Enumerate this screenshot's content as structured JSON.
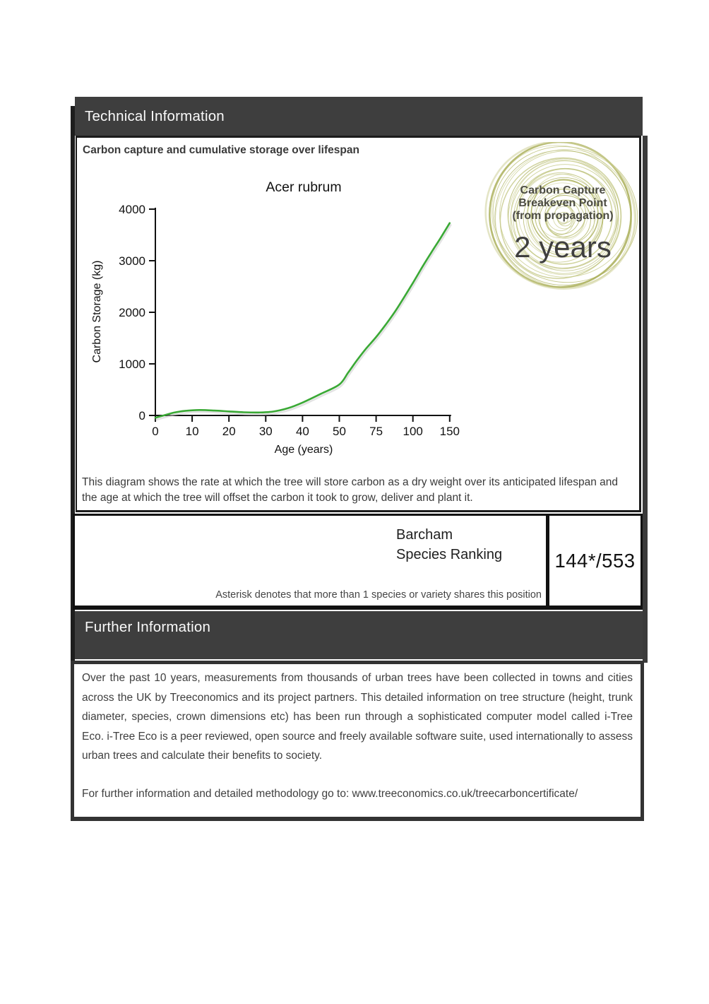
{
  "sections": {
    "technical_title": "Technical Information",
    "further_title": "Further Information"
  },
  "chart_panel": {
    "title": "Carbon capture and cumulative storage over lifespan",
    "caption": "This diagram shows the rate at which the tree will store carbon as a dry weight over its anticipated lifespan and the age at which the tree will offset the carbon it took to grow, deliver and plant it."
  },
  "chart_data": {
    "type": "line",
    "title": "Acer rubrum",
    "xlabel": "Age (years)",
    "ylabel": "Carbon Storage (kg)",
    "x_ticks": [
      0,
      10,
      20,
      30,
      40,
      50,
      75,
      100,
      150
    ],
    "y_ticks": [
      0,
      1000,
      2000,
      3000,
      4000
    ],
    "ylim": [
      0,
      4000
    ],
    "grid": false,
    "legend": "none",
    "line_color": "#3aa935",
    "shadow_color": "#cccccc",
    "points": [
      [
        0,
        -45
      ],
      [
        3,
        15
      ],
      [
        5,
        55
      ],
      [
        8,
        88
      ],
      [
        12,
        105
      ],
      [
        16,
        95
      ],
      [
        20,
        78
      ],
      [
        24,
        62
      ],
      [
        28,
        58
      ],
      [
        32,
        75
      ],
      [
        36,
        140
      ],
      [
        40,
        250
      ],
      [
        45,
        420
      ],
      [
        50,
        600
      ],
      [
        56,
        830
      ],
      [
        62,
        1070
      ],
      [
        68,
        1290
      ],
      [
        75,
        1520
      ],
      [
        82,
        1780
      ],
      [
        88,
        2020
      ],
      [
        94,
        2290
      ],
      [
        100,
        2570
      ],
      [
        112,
        2860
      ],
      [
        125,
        3160
      ],
      [
        138,
        3450
      ],
      [
        150,
        3730
      ]
    ]
  },
  "badge": {
    "line1": "Carbon Capture",
    "line2": "Breakeven Point",
    "line3": "(from propagation)",
    "value": "2 years",
    "ring_colors": [
      "#b8bc6e",
      "#c6ca88",
      "#a9ae58",
      "#cfd29b"
    ]
  },
  "ranking": {
    "title_line1": "Barcham",
    "title_line2": "Species Ranking",
    "value": "144*/553",
    "note": "Asterisk denotes that more than 1 species or variety shares this position"
  },
  "further": {
    "paragraph1": "Over the past 10 years, measurements from thousands of urban trees have been collected in towns and cities across the UK by Treeconomics and its project partners. This detailed information on tree structure (height, trunk diameter, species, crown dimensions etc) has been run through a sophisticated computer model called i-Tree Eco. i-Tree Eco is a peer reviewed, open source and freely available software suite, used internationally to assess urban trees and calculate their benefits to society.",
    "paragraph2": "For further information and detailed methodology go to: www.treeconomics.co.uk/treecarboncertificate/"
  },
  "colors": {
    "header_bg": "#3e3e3e",
    "frame": "#1e1e1e",
    "body_text": "#3f3f3f"
  }
}
